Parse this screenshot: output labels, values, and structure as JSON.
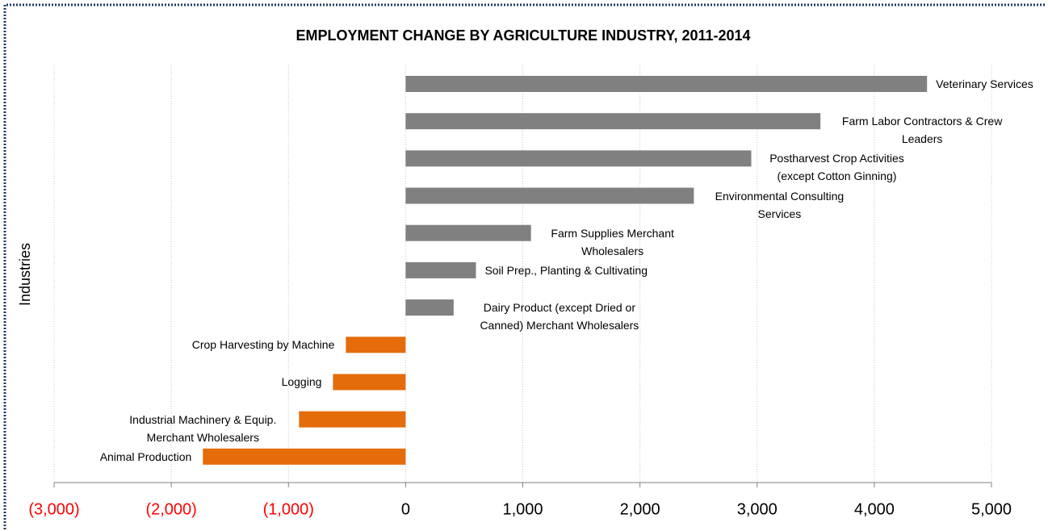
{
  "chart_data": {
    "type": "barh",
    "title": "EMPLOYMENT CHANGE BY AGRICULTURE INDUSTRY, 2011-2014",
    "ylabel": "Industries",
    "categories": [
      "Veterinary Services",
      "Farm Labor Contractors & Crew Leaders",
      "Postharvest Crop Activities (except Cotton Ginning)",
      "Environmental Consulting Services",
      "Farm Supplies Merchant Wholesalers",
      "Soil Prep., Planting & Cultivating",
      "Dairy Product (except Dried or Canned) Merchant Wholesalers",
      "Crop Harvesting by Machine",
      "Logging",
      "Industrial Machinery & Equip. Merchant Wholesalers",
      "Animal Production"
    ],
    "values": [
      4450,
      3540,
      2950,
      2460,
      1070,
      600,
      410,
      -510,
      -620,
      -910,
      -1730
    ],
    "positive_color": "#808080",
    "negative_color": "#e46c0a",
    "negative_tick_color": "#ff0000",
    "xlim": [
      -3000,
      5000
    ],
    "xticks": [
      {
        "value": -3000,
        "label": "(3,000)"
      },
      {
        "value": -2000,
        "label": "(2,000)"
      },
      {
        "value": -1000,
        "label": "(1,000)"
      },
      0,
      {
        "value": 1000,
        "label": "1,000"
      },
      {
        "value": 2000,
        "label": "2,000"
      },
      {
        "value": 3000,
        "label": "3,000"
      },
      {
        "value": 4000,
        "label": "4,000"
      },
      {
        "value": 5000,
        "label": "5,000"
      }
    ],
    "grid": true
  }
}
